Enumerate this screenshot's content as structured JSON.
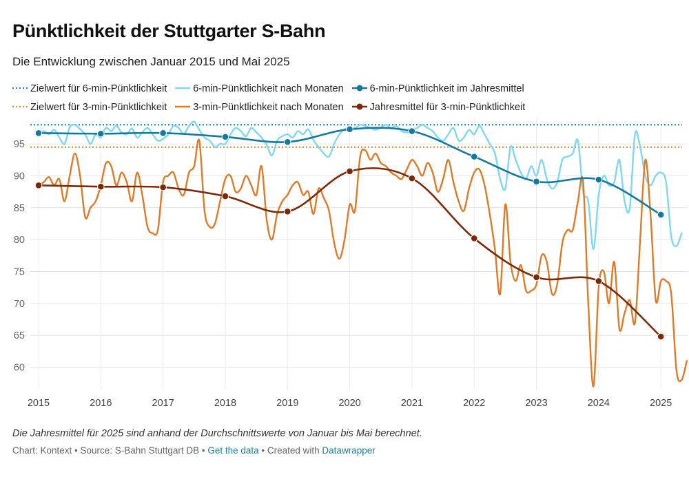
{
  "header": {
    "title": "Pünktlichkeit der Stuttgarter S-Bahn",
    "subtitle": "Die Entwicklung zwischen Januar 2015 und Mai 2025"
  },
  "colors": {
    "target6": "#1f8fc4",
    "monthly6": "#7fd8f2",
    "yearly6": "#15799e",
    "target3": "#e8913c",
    "monthly3": "#e07a27",
    "yearly3": "#7a2a0a"
  },
  "legend": [
    {
      "key": "target6",
      "label": "Zielwert für 6-min-Pünktlichkeit",
      "style": "dotted"
    },
    {
      "key": "monthly6",
      "label": "6-min-Pünktlichkeit nach Monaten",
      "style": "line"
    },
    {
      "key": "yearly6",
      "label": "6-min-Pünktlichkeit im Jahresmittel",
      "style": "dotline"
    },
    {
      "key": "target3",
      "label": "Zielwert für 3-min-Pünktlichkeit",
      "style": "dotted"
    },
    {
      "key": "monthly3",
      "label": "3-min-Pünktlichkeit nach Monaten",
      "style": "line"
    },
    {
      "key": "yearly3",
      "label": "Jahresmittel für 3-min-Pünktlichkeit",
      "style": "dotline"
    }
  ],
  "chart_data": {
    "type": "line",
    "x_range": [
      2015.0,
      2025.33
    ],
    "ylim": [
      56.5,
      99
    ],
    "yticks": [
      60,
      65,
      70,
      75,
      80,
      85,
      90,
      95
    ],
    "xticks": [
      2015,
      2016,
      2017,
      2018,
      2019,
      2020,
      2021,
      2022,
      2023,
      2024,
      2025
    ],
    "targets": [
      {
        "key": "target6",
        "name": "Zielwert für 6-min-Pünktlichkeit",
        "value": 98.0
      },
      {
        "key": "target3",
        "name": "Zielwert für 3-min-Pünktlichkeit",
        "value": 94.5
      }
    ],
    "monthly": [
      {
        "key": "monthly6",
        "name": "6-min-Pünktlichkeit nach Monaten",
        "start": 2015.0,
        "values": [
          96.2,
          97.0,
          96.5,
          97.2,
          96.0,
          95.0,
          97.6,
          98.0,
          97.3,
          96.5,
          95.0,
          96.5,
          96.0,
          97.5,
          97.0,
          97.8,
          96.8,
          96.5,
          97.4,
          96.0,
          96.8,
          97.5,
          96.5,
          95.5,
          95.8,
          96.5,
          97.8,
          97.5,
          96.6,
          97.8,
          98.5,
          97.2,
          96.0,
          95.5,
          94.5,
          95.0,
          95.0,
          96.5,
          97.5,
          97.0,
          96.2,
          97.5,
          96.8,
          96.0,
          94.8,
          93.2,
          95.5,
          96.2,
          96.5,
          96.0,
          97.0,
          96.5,
          97.3,
          95.6,
          94.5,
          93.5,
          93.0,
          95.0,
          96.5,
          97.3,
          97.5,
          97.5,
          98.0,
          97.8,
          97.5,
          97.2,
          97.6,
          98.0,
          97.5,
          97.8,
          97.0,
          96.8,
          97.0,
          97.5,
          98.0,
          97.5,
          97.0,
          96.0,
          95.5,
          96.5,
          97.5,
          95.5,
          96.0,
          97.2,
          96.5,
          97.8,
          96.5,
          95.0,
          93.5,
          89.5,
          88.0,
          94.5,
          92.5,
          90.5,
          89.5,
          91.5,
          90.0,
          92.5,
          89.5,
          88.0,
          89.0,
          92.5,
          93.0,
          93.5,
          95.5,
          87.5,
          86.0,
          78.5,
          87.0,
          90.0,
          88.5,
          89.0,
          92.5,
          86.0,
          85.0,
          96.5,
          94.5,
          90.0,
          88.5,
          90.0,
          90.5,
          89.0,
          80.5,
          79.0,
          81.0
        ]
      },
      {
        "key": "monthly3",
        "name": "3-min-Pünktlichkeit nach Monaten",
        "start": 2015.0,
        "values": [
          88.5,
          89.0,
          89.8,
          88.5,
          89.5,
          86.0,
          90.0,
          93.5,
          90.0,
          83.5,
          85.0,
          86.0,
          88.5,
          92.0,
          91.5,
          88.5,
          90.5,
          89.0,
          86.0,
          90.5,
          87.0,
          82.0,
          81.0,
          81.5,
          89.0,
          90.0,
          90.5,
          88.0,
          87.0,
          90.5,
          91.5,
          95.5,
          84.5,
          82.0,
          82.5,
          86.0,
          89.5,
          90.0,
          87.5,
          88.0,
          90.0,
          88.5,
          87.0,
          91.5,
          83.0,
          80.0,
          84.0,
          86.0,
          87.0,
          88.5,
          89.0,
          87.0,
          87.5,
          84.0,
          88.0,
          86.5,
          84.5,
          79.5,
          77.0,
          80.0,
          85.5,
          84.5,
          93.0,
          94.0,
          92.5,
          93.5,
          92.0,
          91.5,
          90.5,
          90.0,
          89.5,
          91.0,
          92.5,
          91.5,
          90.0,
          92.0,
          90.5,
          87.5,
          89.5,
          92.5,
          89.0,
          86.0,
          84.5,
          88.0,
          90.5,
          91.0,
          88.5,
          84.0,
          78.5,
          71.5,
          85.5,
          76.5,
          73.5,
          76.0,
          72.0,
          72.0,
          73.0,
          77.5,
          76.5,
          71.5,
          73.0,
          79.5,
          81.5,
          81.5,
          86.0,
          89.0,
          70.0,
          57.0,
          72.5,
          75.0,
          70.0,
          76.5,
          66.0,
          68.5,
          70.5,
          67.0,
          80.0,
          92.5,
          84.0,
          70.5,
          73.5,
          73.5,
          71.5,
          59.5,
          58.0,
          61.0
        ]
      }
    ],
    "yearly": [
      {
        "key": "yearly6",
        "name": "6-min-Pünktlichkeit im Jahresmittel",
        "x": [
          2015,
          2016,
          2017,
          2018,
          2019,
          2020,
          2021,
          2022,
          2023,
          2024,
          2025
        ],
        "values": [
          96.7,
          96.6,
          96.7,
          96.1,
          95.3,
          97.3,
          97.0,
          93.0,
          89.1,
          89.4,
          83.9
        ]
      },
      {
        "key": "yearly3",
        "name": "Jahresmittel für 3-min-Pünktlichkeit",
        "x": [
          2015,
          2016,
          2017,
          2018,
          2019,
          2020,
          2021,
          2022,
          2023,
          2024,
          2025
        ],
        "values": [
          88.5,
          88.3,
          88.2,
          86.8,
          84.4,
          90.7,
          89.6,
          80.2,
          74.1,
          73.5,
          64.8
        ]
      }
    ]
  },
  "footer": {
    "note": "Die Jahresmittel für 2025 sind anhand der Durchschnittswerte von Januar bis Mai berechnet.",
    "credit_prefix": "Chart: Kontext • Source: S-Bahn Stuttgart DB • ",
    "get_data": "Get the data",
    "created_with": " • Created with ",
    "tool": "Datawrapper"
  }
}
